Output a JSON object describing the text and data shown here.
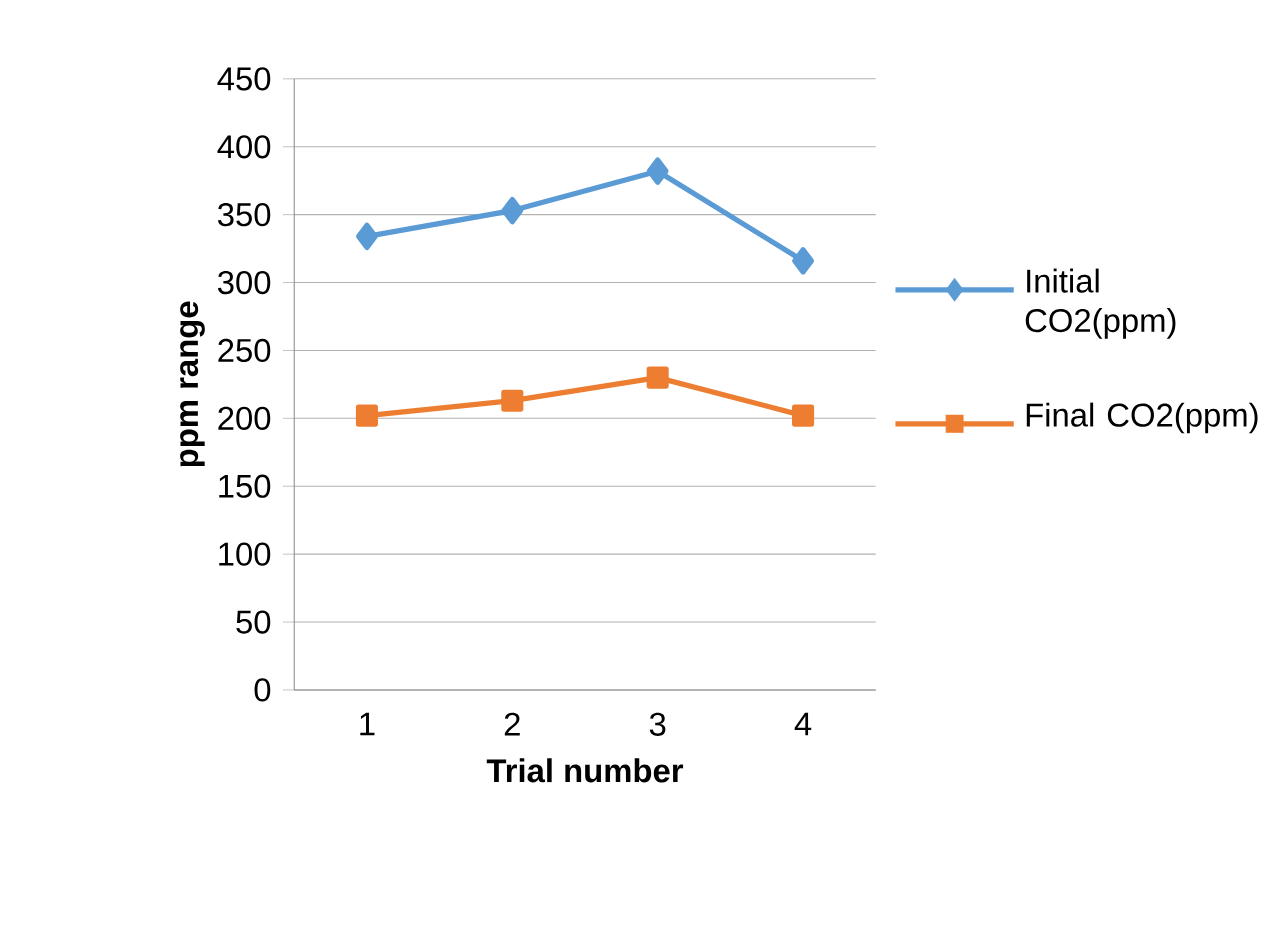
{
  "chart_data": {
    "type": "line",
    "xlabel": "Trial number",
    "ylabel": "ppm range",
    "categories": [
      "1",
      "2",
      "3",
      "4"
    ],
    "series": [
      {
        "name": "Initial CO2(ppm)",
        "color": "#5b9bd5",
        "marker": "diamond",
        "values": [
          334,
          353,
          382,
          316
        ]
      },
      {
        "name": "Final CO2(ppm)",
        "color": "#ed7d31",
        "marker": "square",
        "values": [
          202,
          213,
          230,
          202
        ]
      }
    ],
    "ylim": [
      0,
      450
    ],
    "yticks": [
      0,
      50,
      100,
      150,
      200,
      250,
      300,
      350,
      400,
      450
    ],
    "grid": "y",
    "legend": "right",
    "line_style": "solid"
  }
}
